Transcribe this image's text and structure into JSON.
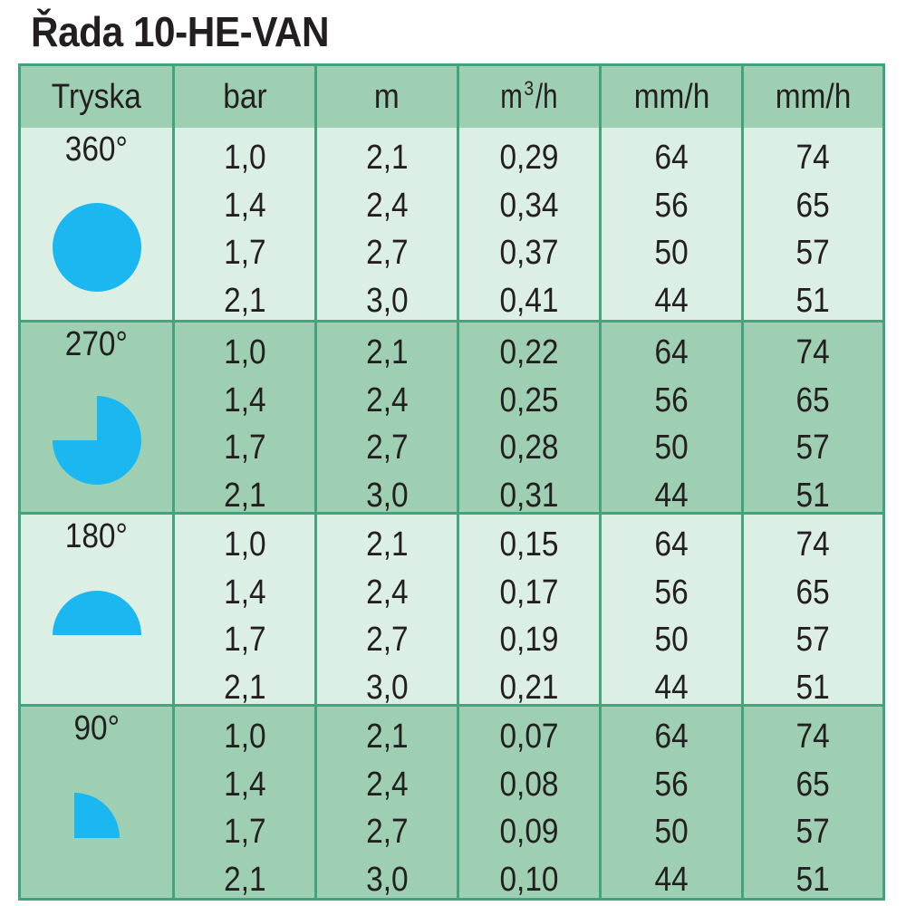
{
  "title": "Řada 10-HE-VAN",
  "table": {
    "headers": [
      {
        "label": "Tryska"
      },
      {
        "label": "bar"
      },
      {
        "label": "m"
      },
      {
        "label_pre": "m",
        "label_sup": "3",
        "label_post": "/h"
      },
      {
        "label": "mm/h"
      },
      {
        "label": "mm/h"
      }
    ],
    "groups": [
      {
        "nozzle": "360°",
        "shape": "circle-360-icon",
        "rows": [
          {
            "bar": "1,0",
            "m": "2,1",
            "flow": "0,29",
            "mmh1": "64",
            "mmh2": "74"
          },
          {
            "bar": "1,4",
            "m": "2,4",
            "flow": "0,34",
            "mmh1": "56",
            "mmh2": "65"
          },
          {
            "bar": "1,7",
            "m": "2,7",
            "flow": "0,37",
            "mmh1": "50",
            "mmh2": "57"
          },
          {
            "bar": "2,1",
            "m": "3,0",
            "flow": "0,41",
            "mmh1": "44",
            "mmh2": "51"
          }
        ]
      },
      {
        "nozzle": "270°",
        "shape": "circle-270-icon",
        "rows": [
          {
            "bar": "1,0",
            "m": "2,1",
            "flow": "0,22",
            "mmh1": "64",
            "mmh2": "74"
          },
          {
            "bar": "1,4",
            "m": "2,4",
            "flow": "0,25",
            "mmh1": "56",
            "mmh2": "65"
          },
          {
            "bar": "1,7",
            "m": "2,7",
            "flow": "0,28",
            "mmh1": "50",
            "mmh2": "57"
          },
          {
            "bar": "2,1",
            "m": "3,0",
            "flow": "0,31",
            "mmh1": "44",
            "mmh2": "51"
          }
        ]
      },
      {
        "nozzle": "180°",
        "shape": "half-circle-180-icon",
        "rows": [
          {
            "bar": "1,0",
            "m": "2,1",
            "flow": "0,15",
            "mmh1": "64",
            "mmh2": "74"
          },
          {
            "bar": "1,4",
            "m": "2,4",
            "flow": "0,17",
            "mmh1": "56",
            "mmh2": "65"
          },
          {
            "bar": "1,7",
            "m": "2,7",
            "flow": "0,19",
            "mmh1": "50",
            "mmh2": "57"
          },
          {
            "bar": "2,1",
            "m": "3,0",
            "flow": "0,21",
            "mmh1": "44",
            "mmh2": "51"
          }
        ]
      },
      {
        "nozzle": "90°",
        "shape": "quarter-circle-90-icon",
        "rows": [
          {
            "bar": "1,0",
            "m": "2,1",
            "flow": "0,07",
            "mmh1": "64",
            "mmh2": "74"
          },
          {
            "bar": "1,4",
            "m": "2,4",
            "flow": "0,08",
            "mmh1": "56",
            "mmh2": "65"
          },
          {
            "bar": "1,7",
            "m": "2,7",
            "flow": "0,09",
            "mmh1": "50",
            "mmh2": "57"
          },
          {
            "bar": "2,1",
            "m": "3,0",
            "flow": "0,10",
            "mmh1": "44",
            "mmh2": "51"
          }
        ]
      }
    ]
  },
  "colors": {
    "border": "#42a47c",
    "light_band": "#dcefe4",
    "dark_band": "#9fcfb3",
    "spray_shape": "#1ab7f0",
    "text": "#231f20"
  }
}
